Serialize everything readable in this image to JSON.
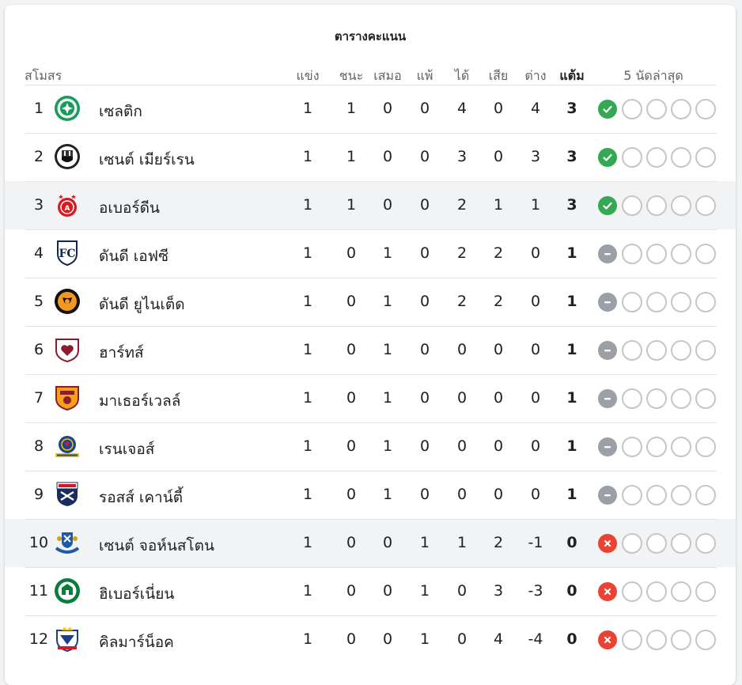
{
  "table": {
    "title": "ตารางคะแนน",
    "headers": {
      "club": "สโมสร",
      "played": "แข่ง",
      "won": "ชนะ",
      "drawn": "เสมอ",
      "lost": "แพ้",
      "gf": "ได้",
      "ga": "เสีย",
      "gd": "ต่าง",
      "pts": "แต้ม",
      "form": "5 นัดล่าสุด"
    },
    "colors": {
      "win": "#34a853",
      "draw": "#9aa0a6",
      "loss": "#ea4335",
      "empty_border": "#c6c6c6",
      "highlight": "#f1f3f4"
    },
    "rows": [
      {
        "pos": "1",
        "club": "เซลติก",
        "crest": "celtic-crest-icon",
        "played": "1",
        "won": "1",
        "drawn": "0",
        "lost": "0",
        "gf": "4",
        "ga": "0",
        "gd": "4",
        "pts": "3",
        "last": "W",
        "highlight": false
      },
      {
        "pos": "2",
        "club": "เซนต์ เมียร์เรน",
        "crest": "st-mirren-crest-icon",
        "played": "1",
        "won": "1",
        "drawn": "0",
        "lost": "0",
        "gf": "3",
        "ga": "0",
        "gd": "3",
        "pts": "3",
        "last": "W",
        "highlight": false
      },
      {
        "pos": "3",
        "club": "อเบอร์ดีน",
        "crest": "aberdeen-crest-icon",
        "played": "1",
        "won": "1",
        "drawn": "0",
        "lost": "0",
        "gf": "2",
        "ga": "1",
        "gd": "1",
        "pts": "3",
        "last": "W",
        "highlight": true
      },
      {
        "pos": "4",
        "club": "ดันดี เอฟซี",
        "crest": "dundee-fc-crest-icon",
        "played": "1",
        "won": "0",
        "drawn": "1",
        "lost": "0",
        "gf": "2",
        "ga": "2",
        "gd": "0",
        "pts": "1",
        "last": "D",
        "highlight": false
      },
      {
        "pos": "5",
        "club": "ดันดี ยูไนเต็ด",
        "crest": "dundee-united-crest-icon",
        "played": "1",
        "won": "0",
        "drawn": "1",
        "lost": "0",
        "gf": "2",
        "ga": "2",
        "gd": "0",
        "pts": "1",
        "last": "D",
        "highlight": false
      },
      {
        "pos": "6",
        "club": "ฮาร์ทส์",
        "crest": "hearts-crest-icon",
        "played": "1",
        "won": "0",
        "drawn": "1",
        "lost": "0",
        "gf": "0",
        "ga": "0",
        "gd": "0",
        "pts": "1",
        "last": "D",
        "highlight": false
      },
      {
        "pos": "7",
        "club": "มาเธอร์เวลล์",
        "crest": "motherwell-crest-icon",
        "played": "1",
        "won": "0",
        "drawn": "1",
        "lost": "0",
        "gf": "0",
        "ga": "0",
        "gd": "0",
        "pts": "1",
        "last": "D",
        "highlight": false
      },
      {
        "pos": "8",
        "club": "เรนเจอส์",
        "crest": "rangers-crest-icon",
        "played": "1",
        "won": "0",
        "drawn": "1",
        "lost": "0",
        "gf": "0",
        "ga": "0",
        "gd": "0",
        "pts": "1",
        "last": "D",
        "highlight": false
      },
      {
        "pos": "9",
        "club": "รอสส์ เคาน์ตี้",
        "crest": "ross-county-crest-icon",
        "played": "1",
        "won": "0",
        "drawn": "1",
        "lost": "0",
        "gf": "0",
        "ga": "0",
        "gd": "0",
        "pts": "1",
        "last": "D",
        "highlight": false
      },
      {
        "pos": "10",
        "club": "เซนต์ จอห์นสโตน",
        "crest": "st-johnstone-crest-icon",
        "played": "1",
        "won": "0",
        "drawn": "0",
        "lost": "1",
        "gf": "1",
        "ga": "2",
        "gd": "-1",
        "pts": "0",
        "last": "L",
        "highlight": true
      },
      {
        "pos": "11",
        "club": "ฮิเบอร์เนี่ยน",
        "crest": "hibernian-crest-icon",
        "played": "1",
        "won": "0",
        "drawn": "0",
        "lost": "1",
        "gf": "0",
        "ga": "3",
        "gd": "-3",
        "pts": "0",
        "last": "L",
        "highlight": false
      },
      {
        "pos": "12",
        "club": "คิลมาร์น็อค",
        "crest": "kilmarnock-crest-icon",
        "played": "1",
        "won": "0",
        "drawn": "0",
        "lost": "1",
        "gf": "0",
        "ga": "4",
        "gd": "-4",
        "pts": "0",
        "last": "L",
        "highlight": false
      }
    ]
  }
}
